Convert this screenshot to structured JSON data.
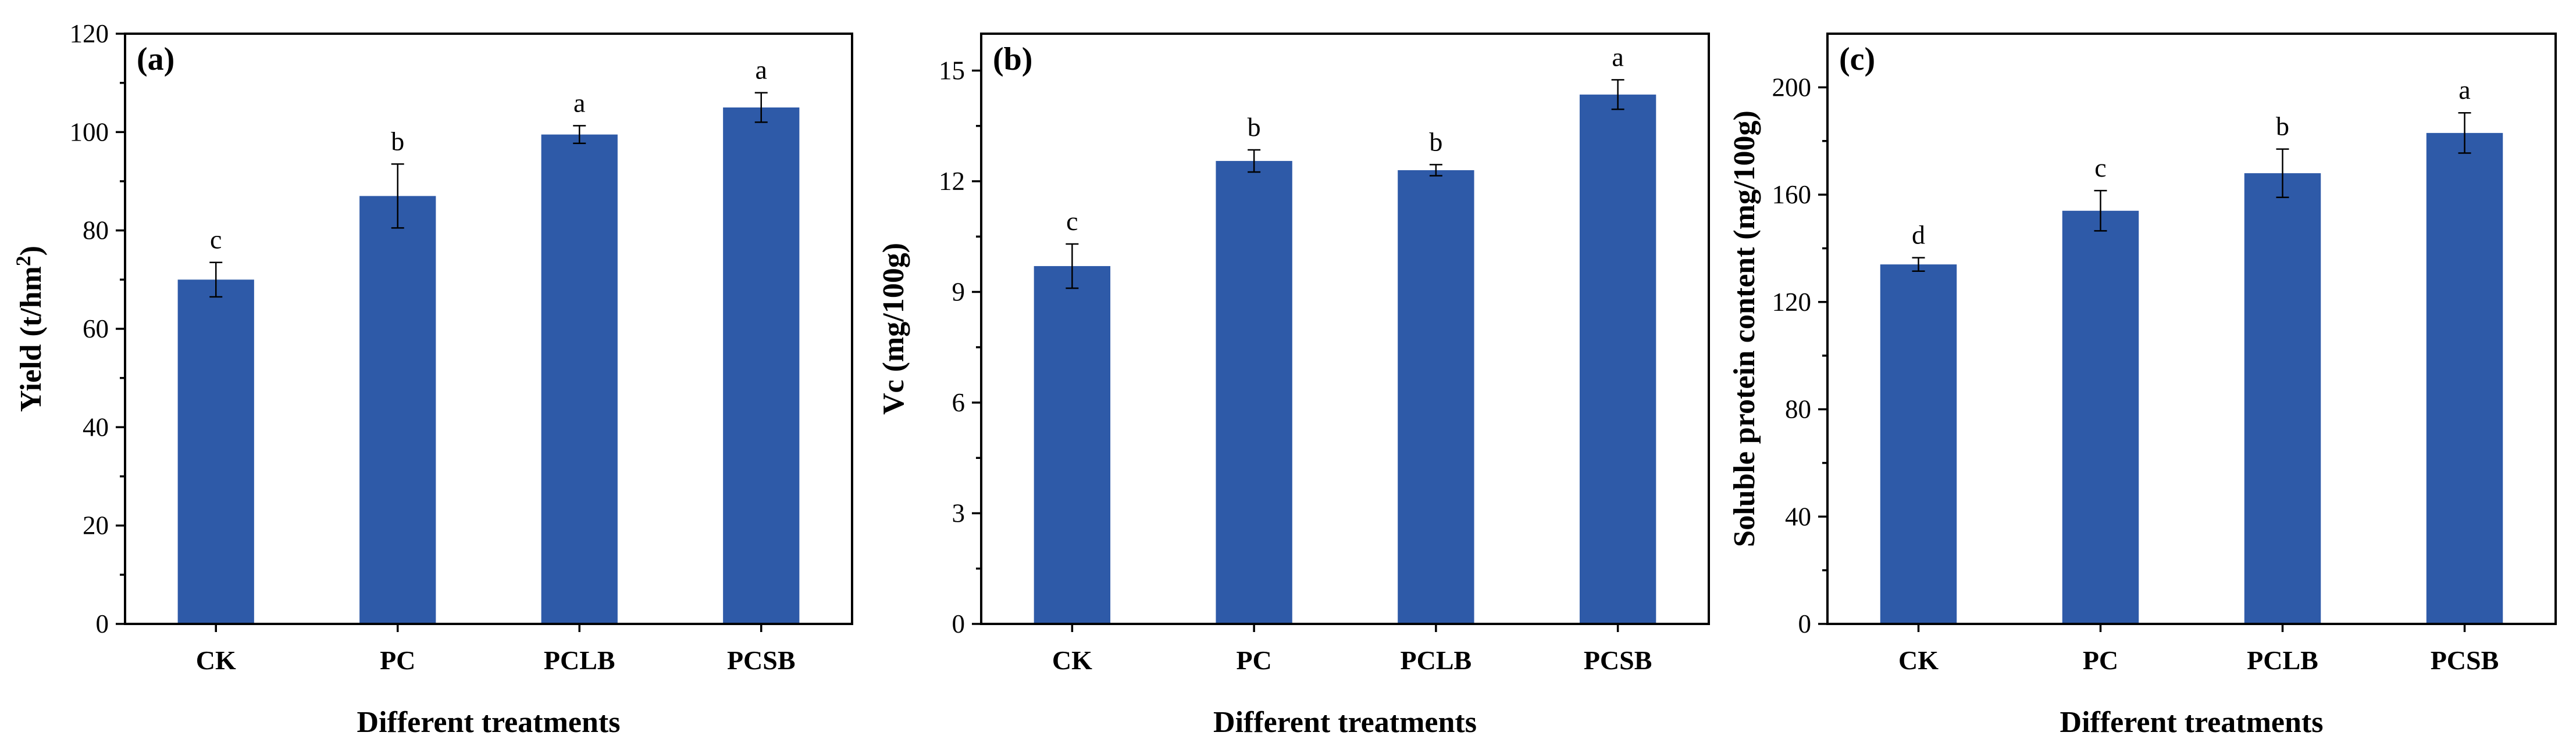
{
  "chart_data": [
    {
      "type": "bar",
      "panel_label": "(a)",
      "categories": [
        "CK",
        "PC",
        "PCLB",
        "PCSB"
      ],
      "values": [
        70,
        87,
        99.5,
        105
      ],
      "errors": [
        3.5,
        6.5,
        1.8,
        3.0
      ],
      "significance": [
        "c",
        "b",
        "a",
        "a"
      ],
      "xlabel": "Different treatments",
      "ylabel": "Yield (t/hm",
      "ylabel_sup": "2",
      "ylabel_tail": ")",
      "ylim": [
        0,
        120
      ],
      "yticks": [
        0,
        20,
        40,
        60,
        80,
        100,
        120
      ],
      "bar_color": "#2e5aa8"
    },
    {
      "type": "bar",
      "panel_label": "(b)",
      "categories": [
        "CK",
        "PC",
        "PCLB",
        "PCSB"
      ],
      "values": [
        9.7,
        12.55,
        12.3,
        14.35
      ],
      "errors": [
        0.6,
        0.3,
        0.15,
        0.4
      ],
      "significance": [
        "c",
        "b",
        "b",
        "a"
      ],
      "xlabel": "Different treatments",
      "ylabel": "Vc (mg/100g)",
      "ylim": [
        0,
        16
      ],
      "yticks": [
        0,
        3,
        6,
        9,
        12,
        15
      ],
      "bar_color": "#2e5aa8"
    },
    {
      "type": "bar",
      "panel_label": "(c)",
      "categories": [
        "CK",
        "PC",
        "PCLB",
        "PCSB"
      ],
      "values": [
        134,
        154,
        168,
        183
      ],
      "errors": [
        2.5,
        7.5,
        9.0,
        7.5
      ],
      "significance": [
        "d",
        "c",
        "b",
        "a"
      ],
      "xlabel": "Different treatments",
      "ylabel": "Soluble protein content (mg/100g)",
      "ylim": [
        0,
        220
      ],
      "yticks": [
        0,
        40,
        80,
        120,
        160,
        200
      ],
      "bar_color": "#2e5aa8"
    }
  ]
}
